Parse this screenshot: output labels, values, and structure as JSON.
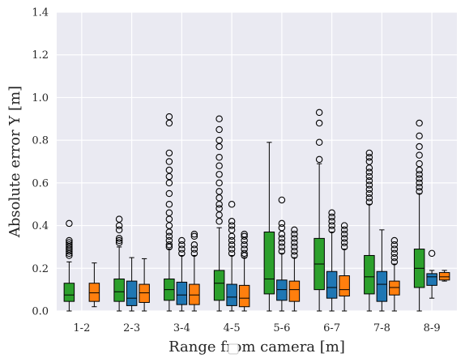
{
  "chart_data": {
    "type": "box",
    "xlabel": "Range from camera [m]",
    "ylabel": "Absolute error Y [m]",
    "ylim": [
      0,
      1.4
    ],
    "yticks": [
      "0.0",
      "0.2",
      "0.4",
      "0.6",
      "0.8",
      "1.0",
      "1.2",
      "1.4"
    ],
    "grid": true,
    "categories": [
      "1-2",
      "2-3",
      "3-4",
      "4-5",
      "5-6",
      "6-7",
      "7-8",
      "8-9"
    ],
    "series": [
      {
        "color": "#2ca02c",
        "boxes": [
          {
            "whislo": 0.0,
            "q1": 0.045,
            "med": 0.075,
            "q3": 0.13,
            "whishi": 0.23,
            "fliers": [
              0.26,
              0.27,
              0.28,
              0.29,
              0.3,
              0.31,
              0.32,
              0.33,
              0.41
            ]
          },
          {
            "whislo": 0.0,
            "q1": 0.045,
            "med": 0.09,
            "q3": 0.15,
            "whishi": 0.3,
            "fliers": [
              0.32,
              0.33,
              0.34,
              0.38,
              0.4,
              0.43
            ]
          },
          {
            "whislo": 0.0,
            "q1": 0.05,
            "med": 0.1,
            "q3": 0.15,
            "whishi": 0.29,
            "fliers": [
              0.3,
              0.31,
              0.33,
              0.35,
              0.37,
              0.4,
              0.43,
              0.46,
              0.5,
              0.55,
              0.6,
              0.63,
              0.66,
              0.7,
              0.74,
              0.88,
              0.91
            ]
          },
          {
            "whislo": 0.0,
            "q1": 0.05,
            "med": 0.13,
            "q3": 0.19,
            "whishi": 0.39,
            "fliers": [
              0.42,
              0.45,
              0.48,
              0.5,
              0.53,
              0.56,
              0.6,
              0.64,
              0.68,
              0.72,
              0.77,
              0.8,
              0.85,
              0.9
            ]
          },
          {
            "whislo": 0.0,
            "q1": 0.08,
            "med": 0.15,
            "q3": 0.37,
            "whishi": 0.79,
            "fliers": []
          },
          {
            "whislo": 0.0,
            "q1": 0.1,
            "med": 0.22,
            "q3": 0.34,
            "whishi": 0.69,
            "fliers": [
              0.71,
              0.79,
              0.88,
              0.93
            ]
          },
          {
            "whislo": 0.0,
            "q1": 0.08,
            "med": 0.16,
            "q3": 0.26,
            "whishi": 0.5,
            "fliers": [
              0.51,
              0.53,
              0.55,
              0.57,
              0.59,
              0.61,
              0.63,
              0.65,
              0.67,
              0.7,
              0.72,
              0.74
            ]
          },
          {
            "whislo": 0.0,
            "q1": 0.11,
            "med": 0.2,
            "q3": 0.29,
            "whishi": 0.55,
            "fliers": [
              0.56,
              0.58,
              0.6,
              0.62,
              0.64,
              0.66,
              0.69,
              0.73,
              0.77,
              0.82,
              0.88
            ]
          }
        ]
      },
      {
        "color": "#1f77b4",
        "boxes": [
          null,
          {
            "whislo": 0.0,
            "q1": 0.025,
            "med": 0.06,
            "q3": 0.14,
            "whishi": 0.25,
            "fliers": []
          },
          {
            "whislo": 0.0,
            "q1": 0.03,
            "med": 0.075,
            "q3": 0.135,
            "whishi": 0.26,
            "fliers": [
              0.27,
              0.29,
              0.31,
              0.33
            ]
          },
          {
            "whislo": 0.0,
            "q1": 0.025,
            "med": 0.065,
            "q3": 0.125,
            "whishi": 0.26,
            "fliers": [
              0.27,
              0.29,
              0.31,
              0.33,
              0.35,
              0.38,
              0.4,
              0.42,
              0.5
            ]
          },
          {
            "whislo": 0.0,
            "q1": 0.05,
            "med": 0.1,
            "q3": 0.145,
            "whishi": 0.27,
            "fliers": [
              0.28,
              0.3,
              0.32,
              0.34,
              0.36,
              0.39,
              0.41,
              0.52
            ]
          },
          {
            "whislo": 0.0,
            "q1": 0.06,
            "med": 0.11,
            "q3": 0.185,
            "whishi": 0.37,
            "fliers": [
              0.38,
              0.4,
              0.42,
              0.44,
              0.46
            ]
          },
          {
            "whislo": 0.0,
            "q1": 0.045,
            "med": 0.125,
            "q3": 0.185,
            "whishi": 0.38,
            "fliers": []
          },
          {
            "whislo": 0.06,
            "q1": 0.12,
            "med": 0.16,
            "q3": 0.175,
            "whishi": 0.19,
            "fliers": [
              0.27
            ]
          }
        ]
      },
      {
        "color": "#ff7f0e",
        "boxes": [
          {
            "whislo": 0.02,
            "q1": 0.045,
            "med": 0.085,
            "q3": 0.13,
            "whishi": 0.225,
            "fliers": []
          },
          {
            "whislo": 0.0,
            "q1": 0.04,
            "med": 0.085,
            "q3": 0.125,
            "whishi": 0.245,
            "fliers": []
          },
          {
            "whislo": 0.0,
            "q1": 0.03,
            "med": 0.075,
            "q3": 0.125,
            "whishi": 0.26,
            "fliers": [
              0.27,
              0.29,
              0.31,
              0.35,
              0.36
            ]
          },
          {
            "whislo": 0.0,
            "q1": 0.02,
            "med": 0.06,
            "q3": 0.12,
            "whishi": 0.25,
            "fliers": [
              0.26,
              0.27,
              0.29,
              0.31,
              0.33,
              0.35,
              0.36
            ]
          },
          {
            "whislo": 0.0,
            "q1": 0.045,
            "med": 0.1,
            "q3": 0.14,
            "whishi": 0.25,
            "fliers": [
              0.26,
              0.28,
              0.3,
              0.32,
              0.34,
              0.36,
              0.38
            ]
          },
          {
            "whislo": 0.0,
            "q1": 0.07,
            "med": 0.1,
            "q3": 0.165,
            "whishi": 0.29,
            "fliers": [
              0.3,
              0.32,
              0.34,
              0.36,
              0.38,
              0.4
            ]
          },
          {
            "whislo": 0.0,
            "q1": 0.075,
            "med": 0.11,
            "q3": 0.14,
            "whishi": 0.22,
            "fliers": [
              0.23,
              0.25,
              0.27,
              0.29,
              0.31,
              0.33
            ]
          },
          {
            "whislo": 0.14,
            "q1": 0.145,
            "med": 0.16,
            "q3": 0.18,
            "whishi": 0.19,
            "fliers": []
          }
        ]
      }
    ]
  }
}
